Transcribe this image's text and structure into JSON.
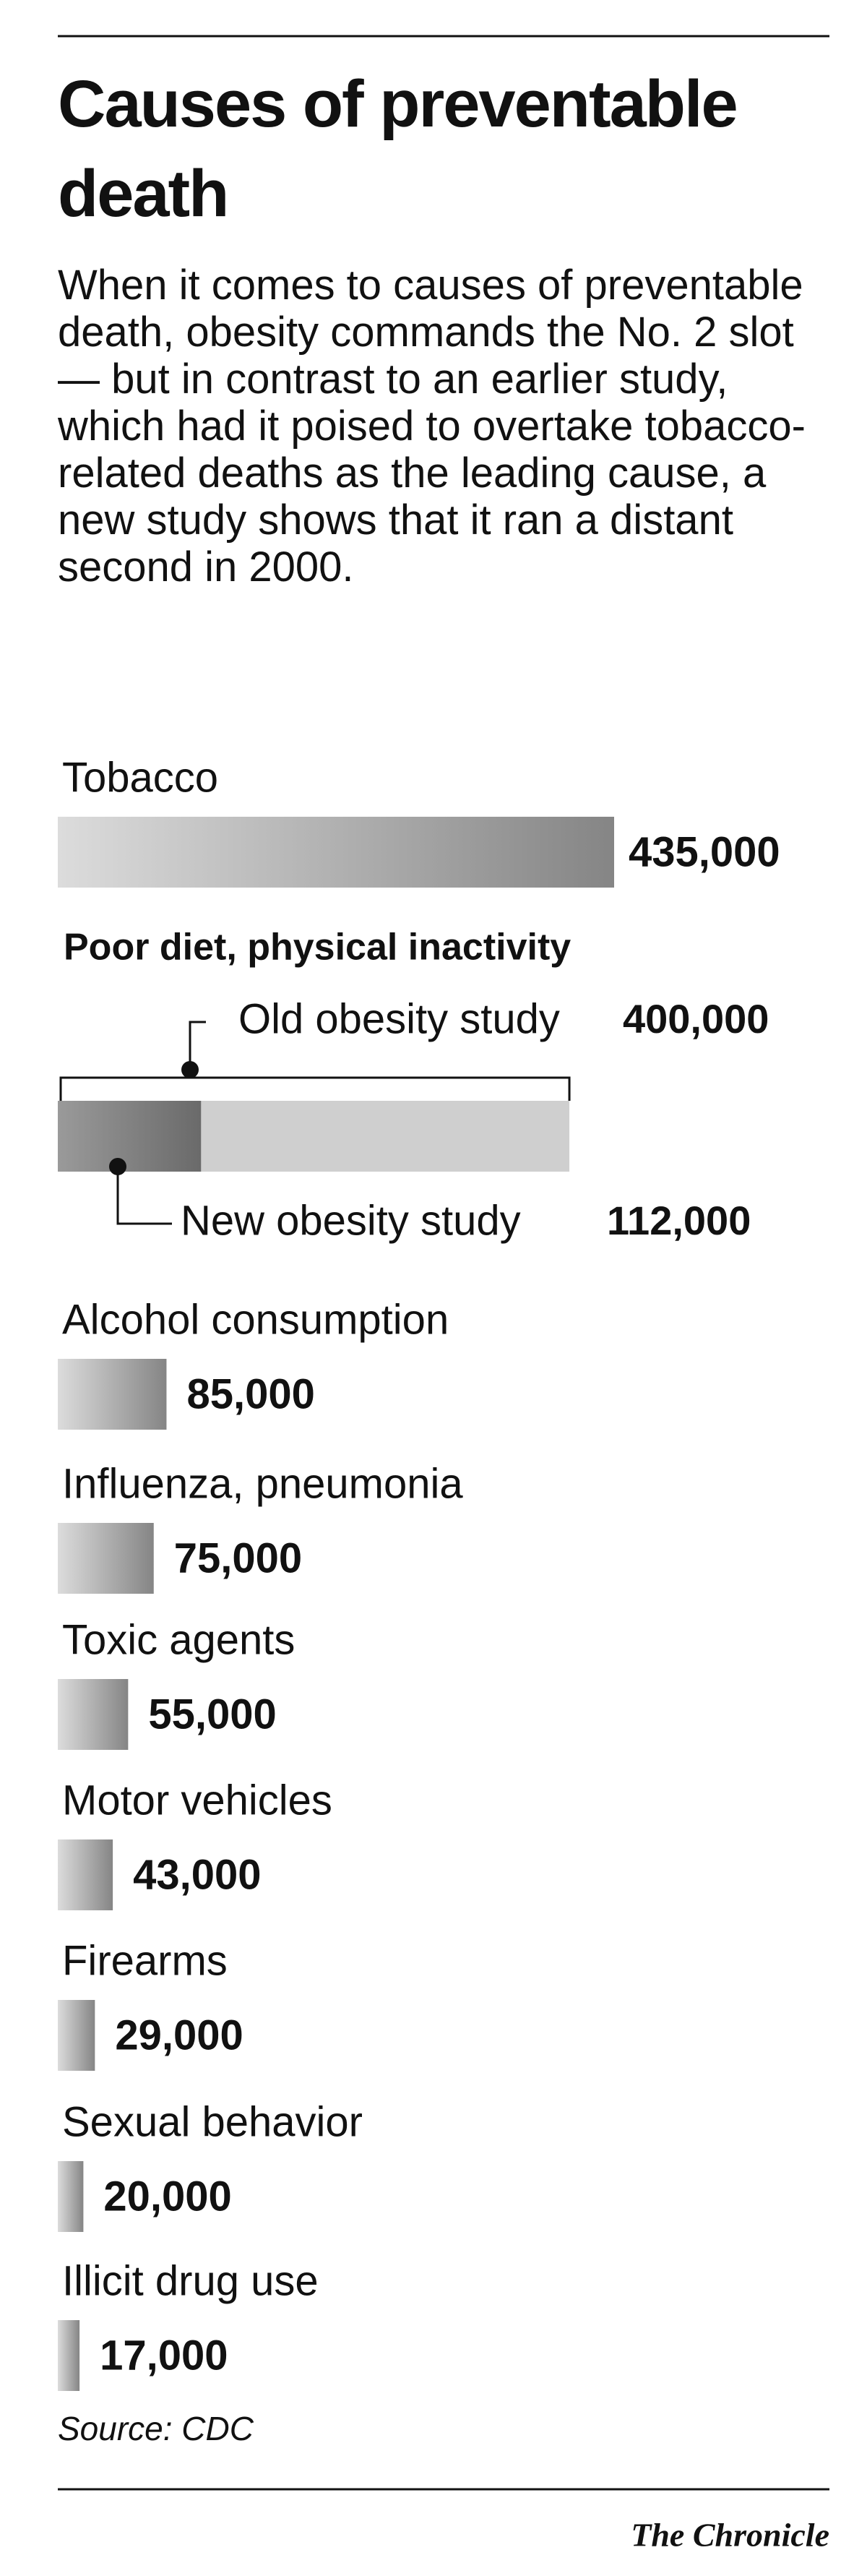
{
  "chart_data": {
    "type": "bar",
    "title": "Causes of preventable death",
    "subtitle": "When it comes to causes of preventable death, obesity commands the No. 2 slot — but in contrast to an earlier study, which had it poised to overtake tobacco-related deaths as the leading cause, a new study shows that it ran a distant second in 2000.",
    "categories": [
      "Tobacco",
      "Poor diet, physical inactivity",
      "Alcohol consumption",
      "Influenza, pneumonia",
      "Toxic agents",
      "Motor vehicles",
      "Firearms",
      "Sexual behavior",
      "Illicit drug use"
    ],
    "values": [
      435000,
      null,
      85000,
      75000,
      55000,
      43000,
      29000,
      20000,
      17000
    ],
    "value_labels": [
      "435,000",
      null,
      "85,000",
      "75,000",
      "55,000",
      "43,000",
      "29,000",
      "20,000",
      "17,000"
    ],
    "obesity_studies": [
      {
        "name": "Old obesity study",
        "value": 400000,
        "value_label": "400,000"
      },
      {
        "name": "New obesity study",
        "value": 112000,
        "value_label": "112,000"
      }
    ],
    "source": "Source: CDC",
    "credit": "The Chronicle"
  }
}
